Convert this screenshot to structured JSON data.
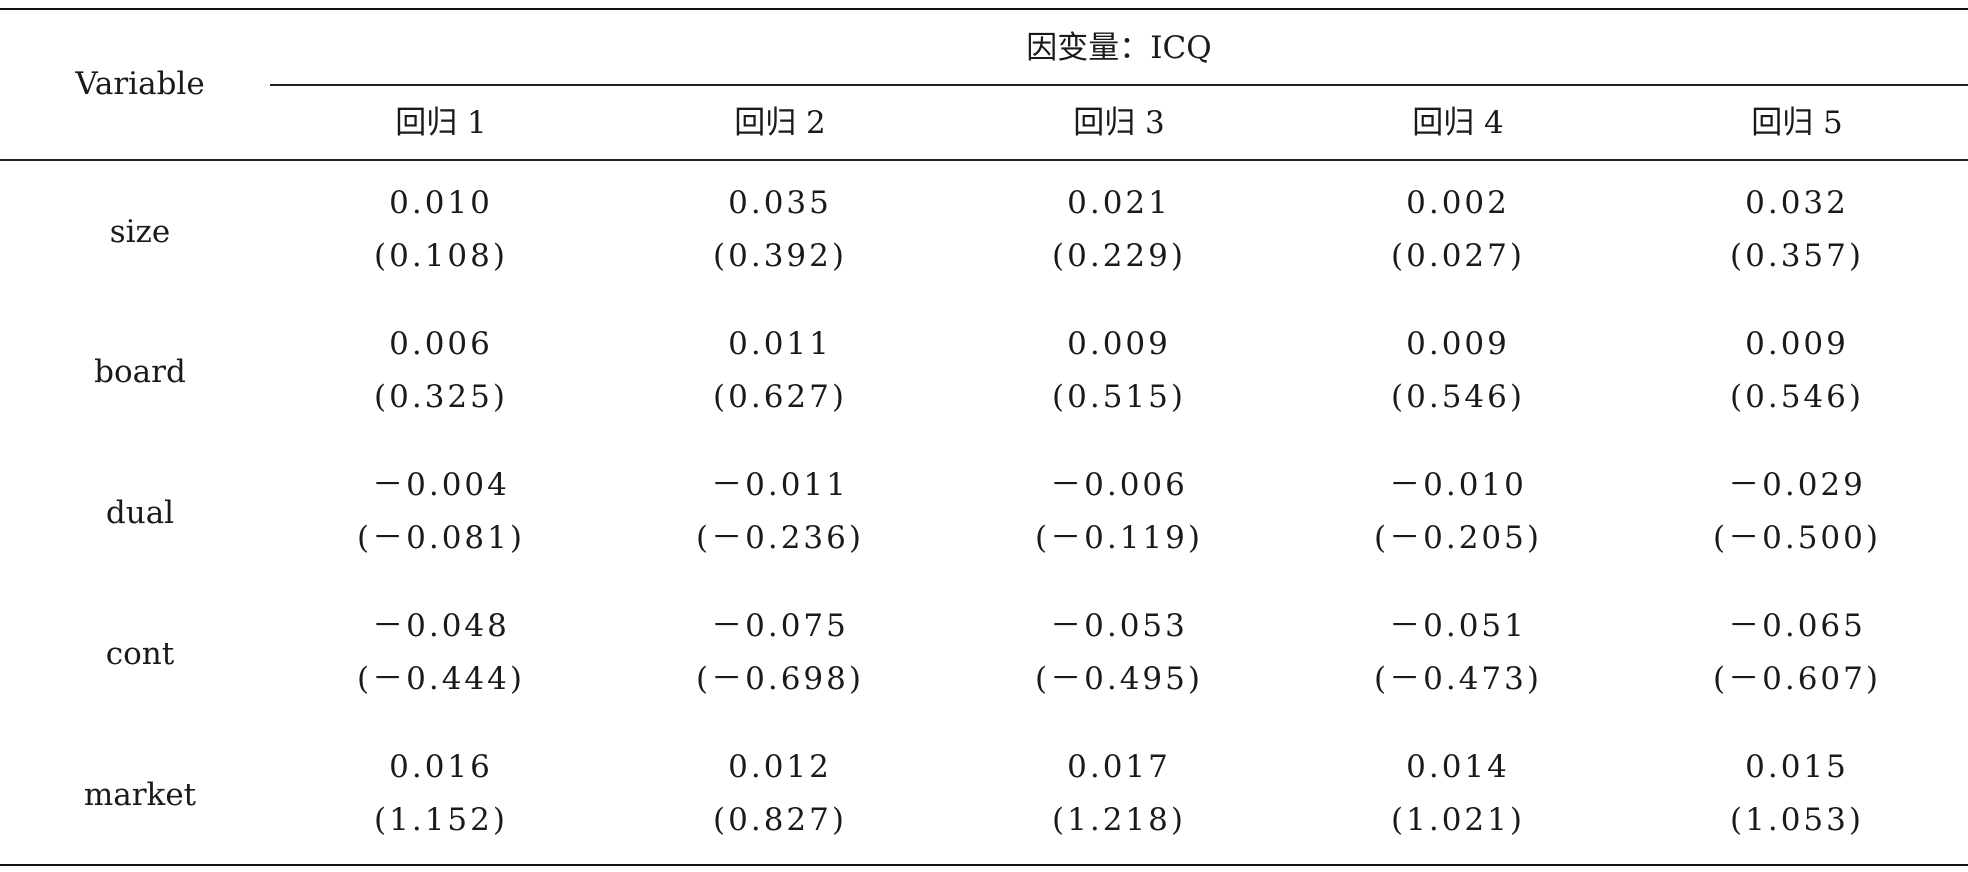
{
  "header": {
    "variable_label": "Variable",
    "dependent_var": "因变量：ICQ",
    "regressions": [
      "回归 1",
      "回归 2",
      "回归 3",
      "回归 4",
      "回归 5"
    ]
  },
  "rows": [
    {
      "label": "size",
      "coef": [
        "0.010",
        "0.035",
        "0.021",
        "0.002",
        "0.032"
      ],
      "t": [
        "(0.108)",
        "(0.392)",
        "(0.229)",
        "(0.027)",
        "(0.357)"
      ]
    },
    {
      "label": "board",
      "coef": [
        "0.006",
        "0.011",
        "0.009",
        "0.009",
        "0.009"
      ],
      "t": [
        "(0.325)",
        "(0.627)",
        "(0.515)",
        "(0.546)",
        "(0.546)"
      ]
    },
    {
      "label": "dual",
      "coef": [
        "－0.004",
        "－0.011",
        "－0.006",
        "－0.010",
        "－0.029"
      ],
      "t": [
        "(－0.081)",
        "(－0.236)",
        "(－0.119)",
        "(－0.205)",
        "(－0.500)"
      ]
    },
    {
      "label": "cont",
      "coef": [
        "－0.048",
        "－0.075",
        "－0.053",
        "－0.051",
        "－0.065"
      ],
      "t": [
        "(－0.444)",
        "(－0.698)",
        "(－0.495)",
        "(－0.473)",
        "(－0.607)"
      ]
    },
    {
      "label": "market",
      "coef": [
        "0.016",
        "0.012",
        "0.017",
        "0.014",
        "0.015"
      ],
      "t": [
        "(1.152)",
        "(0.827)",
        "(1.218)",
        "(1.021)",
        "(1.053)"
      ]
    }
  ]
}
